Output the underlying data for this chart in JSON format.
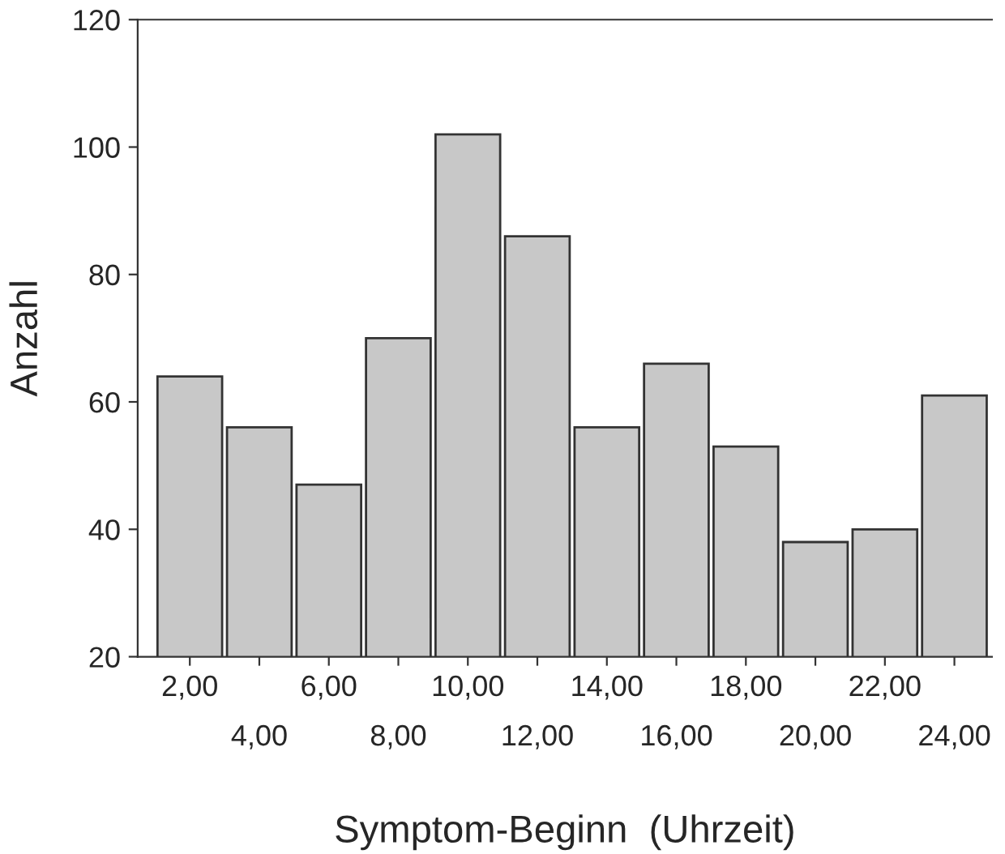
{
  "chart_data": {
    "type": "bar",
    "xlabel": "Symptom-Beginn  (Uhrzeit)",
    "ylabel": "Anzahl",
    "categories": [
      "2,00",
      "4,00",
      "6,00",
      "8,00",
      "10,00",
      "12,00",
      "14,00",
      "16,00",
      "18,00",
      "20,00",
      "22,00",
      "24,00"
    ],
    "values": [
      64,
      56,
      47,
      70,
      102,
      86,
      56,
      66,
      53,
      38,
      40,
      61
    ],
    "color": "#c8c8c8",
    "ylim": [
      20,
      120
    ],
    "yticks": [
      20,
      40,
      60,
      80,
      100,
      120
    ],
    "grid": false,
    "legend": false
  }
}
